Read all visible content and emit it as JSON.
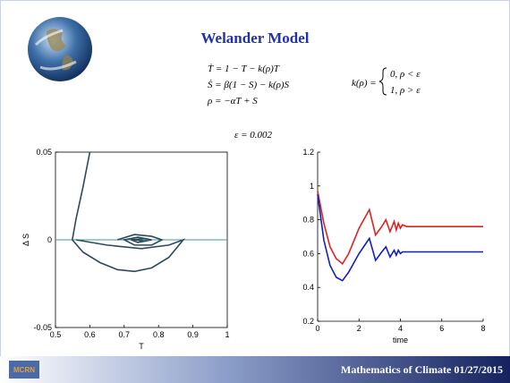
{
  "header": {
    "title": "Welander Model"
  },
  "equations": {
    "t_dot": "Ṫ = 1 − T − k(ρ)T",
    "s_dot": "Ṡ = β(1 − S) − k(ρ)S",
    "rho": "ρ = −αT + S",
    "k_lhs": "k(ρ) =",
    "k_case_1": "0,   ρ < ε",
    "k_case_2": "1,   ρ > ε",
    "epsilon": "ε = 0.002"
  },
  "footer": {
    "text": "Mathematics of Climate  01/27/2015",
    "logo": "MCRN"
  },
  "chart_data": [
    {
      "type": "line",
      "xlabel": "T",
      "ylabel": "Δ S",
      "xlim": [
        0.5,
        1
      ],
      "ylim": [
        -0.05,
        0.05
      ],
      "xticks": [
        0.5,
        0.6,
        0.7,
        0.8,
        0.9,
        1
      ],
      "yticks": [
        -0.05,
        0,
        0.05
      ],
      "frame": true,
      "zero_line_color": "#3a9c9c",
      "series": [
        {
          "color": "#2d4a5a",
          "x": [
            0.6,
            0.58,
            0.56,
            0.549,
            0.58,
            0.63,
            0.68,
            0.73,
            0.78,
            0.83,
            0.872,
            0.83,
            0.75,
            0.65,
            0.56
          ],
          "values": [
            0.05,
            0.03,
            0.012,
            0,
            -0.007,
            -0.013,
            -0.017,
            -0.018,
            -0.016,
            -0.01,
            0,
            -0.003,
            -0.005,
            -0.003,
            0
          ]
        },
        {
          "color": "#2d4a5a",
          "x": [
            0.68,
            0.73,
            0.78,
            0.81,
            0.78,
            0.73,
            0.7,
            0.74,
            0.78,
            0.74,
            0.72,
            0.76,
            0.78,
            0.76,
            0.73
          ],
          "values": [
            0,
            0.003,
            0.002,
            0,
            -0.003,
            -0.003,
            0,
            0.0015,
            0,
            -0.0015,
            0,
            0.0008,
            0,
            -0.0008,
            0
          ]
        }
      ]
    },
    {
      "type": "line",
      "xlabel": "time",
      "xlim": [
        0,
        8
      ],
      "ylim": [
        0.2,
        1.2
      ],
      "xticks": [
        0,
        2,
        4,
        6,
        8
      ],
      "yticks": [
        0.2,
        0.4,
        0.6,
        0.8,
        1,
        1.2
      ],
      "frame": false,
      "x": [
        0,
        0.3,
        0.6,
        0.9,
        1.2,
        1.5,
        2,
        2.5,
        2.8,
        3.1,
        3.3,
        3.5,
        3.7,
        3.8,
        3.9,
        4,
        4.1,
        4.3,
        8
      ],
      "series": [
        {
          "color": "#e02020",
          "values": [
            0.97,
            0.78,
            0.64,
            0.57,
            0.54,
            0.6,
            0.75,
            0.86,
            0.71,
            0.76,
            0.8,
            0.73,
            0.79,
            0.74,
            0.78,
            0.75,
            0.77,
            0.76,
            0.76
          ]
        },
        {
          "color": "#1020c0",
          "values": [
            0.95,
            0.68,
            0.53,
            0.46,
            0.44,
            0.49,
            0.6,
            0.69,
            0.56,
            0.61,
            0.64,
            0.58,
            0.62,
            0.59,
            0.62,
            0.6,
            0.61,
            0.61,
            0.61
          ]
        }
      ]
    }
  ]
}
